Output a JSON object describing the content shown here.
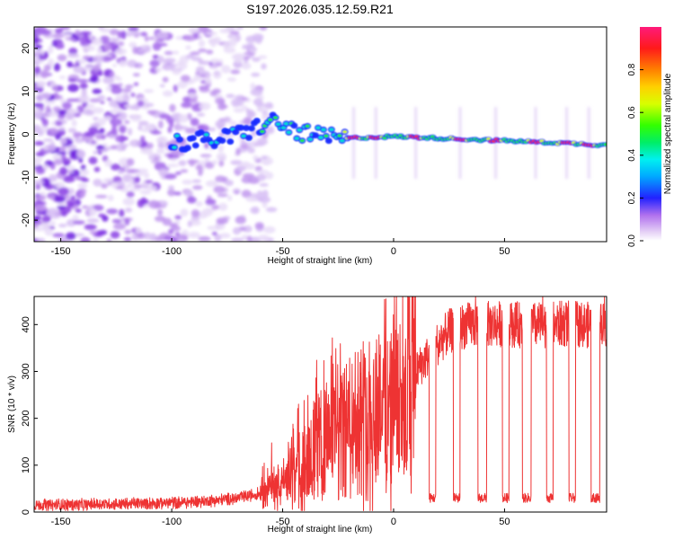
{
  "title": "S197.2026.035.12.59.R21",
  "colors": {
    "snr_line": "#ee3333",
    "axis": "#000000"
  },
  "chart_data": [
    {
      "type": "heatmap",
      "name": "spectrogram",
      "xlabel": "Height of straight line (km)",
      "ylabel": "Frequency (Hz)",
      "xlim": [
        -162,
        96
      ],
      "ylim": [
        -25,
        25
      ],
      "xticks": [
        -150,
        -100,
        -50,
        0,
        50
      ],
      "yticks": [
        -20,
        -10,
        0,
        10,
        20
      ],
      "colorbar": {
        "label": "Normalized spectral amplitude",
        "range": [
          0,
          1
        ],
        "ticks": [
          0.0,
          0.2,
          0.4,
          0.6,
          0.8
        ],
        "tick_labels": [
          "0.0",
          "0.2",
          "0.4",
          "0.6",
          "0.8"
        ]
      },
      "features": {
        "noise_region_km": [
          -162,
          -65
        ],
        "signal_start_km": -100,
        "signal_track": {
          "x_km": [
            -100,
            -75,
            -55,
            -40,
            -25,
            0,
            25,
            50,
            75,
            94
          ],
          "freq_hz": [
            -2,
            -1,
            3,
            0,
            -1,
            -0.5,
            -1,
            -1.5,
            -2,
            -2.5
          ]
        },
        "peak_amplitude_positions_km": [
          -18,
          -8,
          10,
          30,
          46,
          64,
          78,
          88
        ]
      }
    },
    {
      "type": "line",
      "name": "snr",
      "xlabel": "Height of straight line (km)",
      "ylabel": "SNR (10 * v/v)",
      "xlim": [
        -162,
        96
      ],
      "ylim": [
        0,
        460
      ],
      "xticks": [
        -150,
        -100,
        -50,
        0,
        50
      ],
      "yticks": [
        0,
        100,
        200,
        300,
        400
      ],
      "series": [
        {
          "name": "SNR",
          "x": [
            -162,
            -140,
            -120,
            -100,
            -90,
            -80,
            -70,
            -60,
            -50,
            -45,
            -40,
            -35,
            -30,
            -25,
            -20,
            -15,
            -10,
            -5,
            0,
            5,
            10,
            15,
            20,
            25,
            30,
            35,
            40,
            50,
            60,
            70,
            80,
            90,
            96
          ],
          "values": [
            15,
            16,
            18,
            20,
            22,
            25,
            30,
            40,
            60,
            90,
            120,
            140,
            160,
            175,
            190,
            200,
            215,
            230,
            240,
            270,
            300,
            330,
            360,
            385,
            395,
            400,
            400,
            402,
            398,
            400,
            402,
            398,
            400
          ],
          "dips": [
            {
              "start_km": 16,
              "end_km": 19,
              "value": 30
            },
            {
              "start_km": 27,
              "end_km": 30,
              "value": 30
            },
            {
              "start_km": 38,
              "end_km": 42,
              "value": 30
            },
            {
              "start_km": 49,
              "end_km": 52,
              "value": 30
            },
            {
              "start_km": 58,
              "end_km": 62,
              "value": 30
            },
            {
              "start_km": 69,
              "end_km": 72,
              "value": 30
            },
            {
              "start_km": 79,
              "end_km": 82,
              "value": 30
            },
            {
              "start_km": 89,
              "end_km": 93,
              "value": 30
            }
          ]
        }
      ],
      "peak_value": 460
    }
  ]
}
